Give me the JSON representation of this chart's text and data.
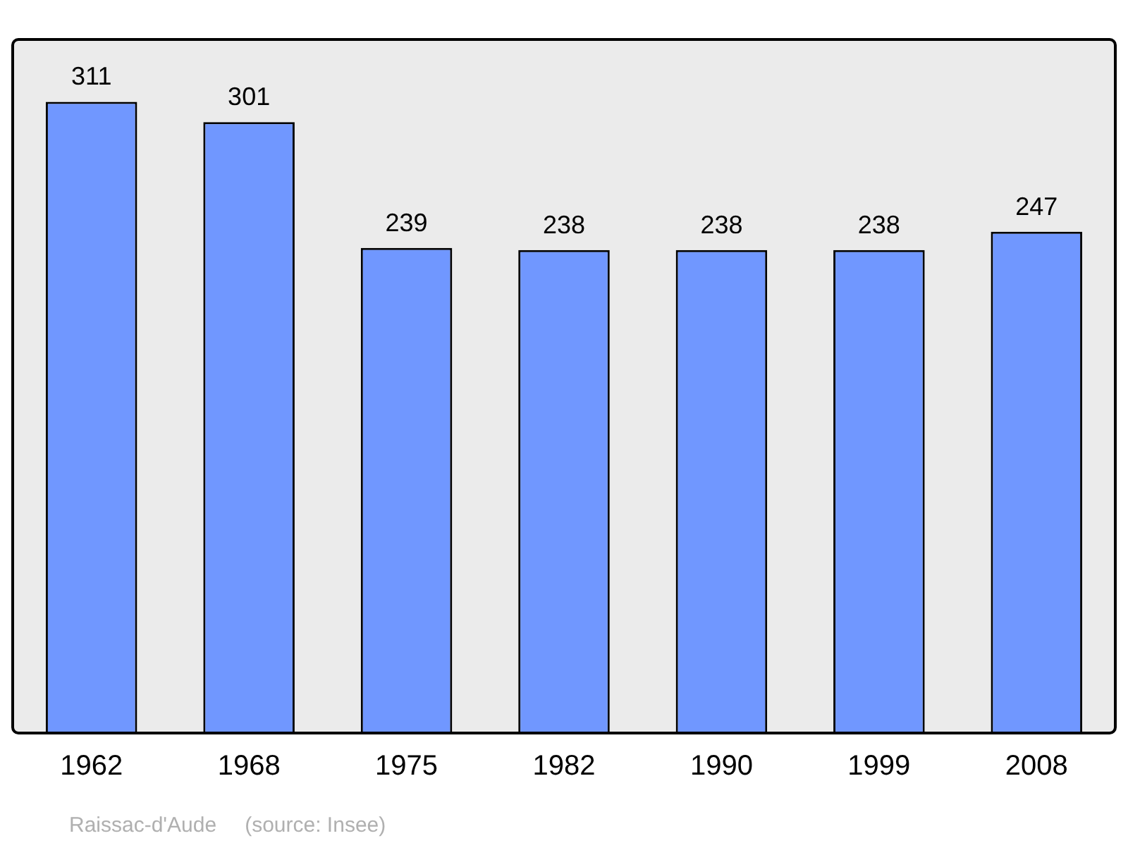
{
  "chart_data": {
    "type": "bar",
    "categories": [
      "1962",
      "1968",
      "1975",
      "1982",
      "1990",
      "1999",
      "2008"
    ],
    "values": [
      311,
      301,
      239,
      238,
      238,
      238,
      247
    ],
    "color": "#7097ff",
    "data_labels": true,
    "grid": false,
    "legend": false,
    "annotations": [
      "Raissac-d'Aude",
      "(source: Insee)"
    ]
  }
}
